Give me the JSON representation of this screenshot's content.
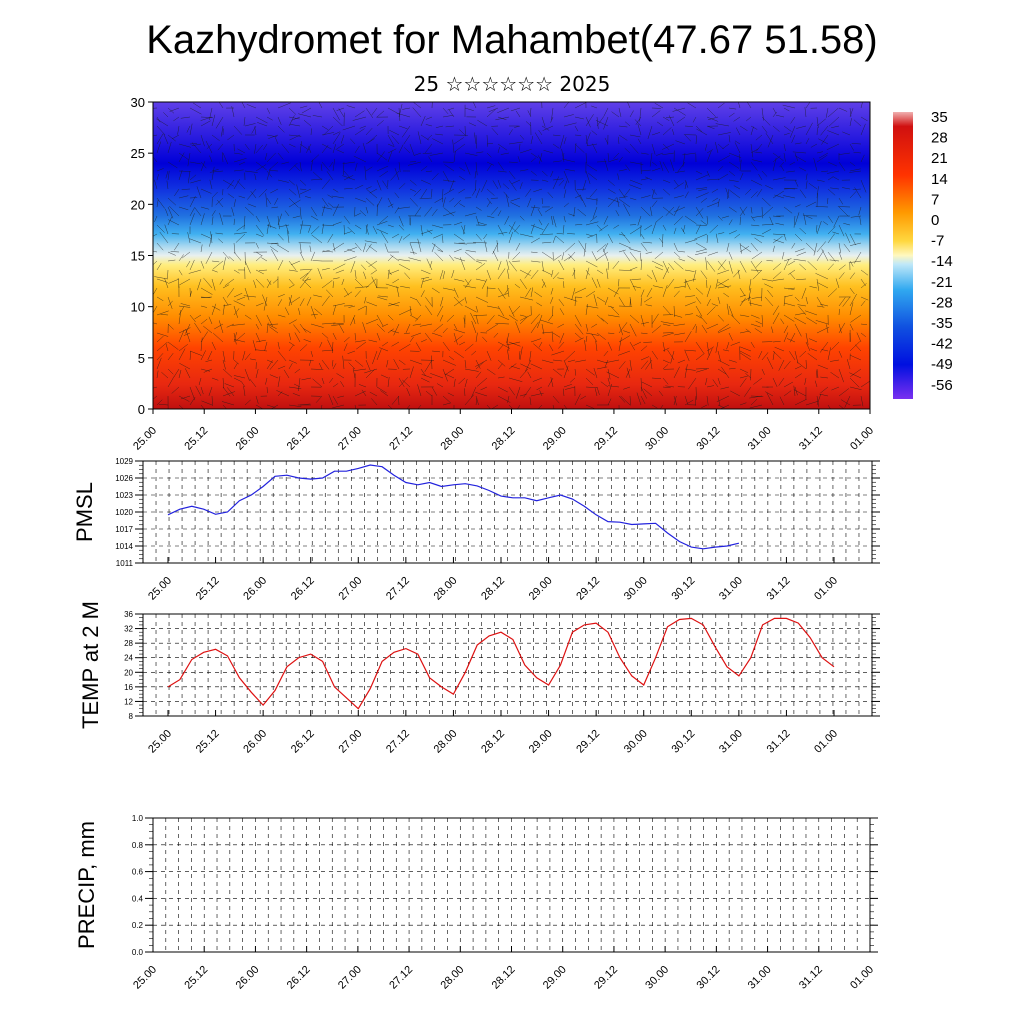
{
  "title": "Kazhydromet for Mahambet(47.67 51.58)",
  "subtitle": "25 ☆☆☆☆☆☆ 2025",
  "x_ticks": [
    "25.00",
    "25.12",
    "26.00",
    "26.12",
    "27.00",
    "27.12",
    "28.00",
    "28.12",
    "29.00",
    "29.12",
    "30.00",
    "30.12",
    "31.00",
    "31.12",
    "01.00"
  ],
  "colors": {
    "pmsl_line": "#2222dd",
    "temp_line": "#dd1111",
    "axis": "#000000"
  },
  "chart_data": [
    {
      "type": "heatmap",
      "name": "cross-section",
      "xlabel": "",
      "ylabel": "",
      "x_range": [
        0,
        7
      ],
      "ylim": [
        0,
        30
      ],
      "y_ticks": [
        "0",
        "5",
        "10",
        "15",
        "20",
        "25",
        "30"
      ],
      "colorbar": {
        "labels": [
          "35",
          "28",
          "21",
          "14",
          "7",
          "0",
          "-7",
          "-14",
          "-21",
          "-28",
          "-35",
          "-42",
          "-49",
          "-56"
        ],
        "range": [
          -63,
          38
        ]
      },
      "description_vectors": true
    },
    {
      "type": "line",
      "name": "pmsl",
      "ylabel": "PMSL",
      "ylim": [
        1011,
        1029
      ],
      "y_ticks": [
        "1011",
        "1014",
        "1017",
        "1020",
        "1023",
        "1026",
        "1029"
      ],
      "x": [
        0,
        0.125,
        0.25,
        0.375,
        0.5,
        0.625,
        0.75,
        0.875,
        1,
        1.125,
        1.25,
        1.375,
        1.5,
        1.625,
        1.75,
        1.875,
        2,
        2.125,
        2.25,
        2.375,
        2.5,
        2.625,
        2.75,
        2.875,
        3,
        3.125,
        3.25,
        3.375,
        3.5,
        3.625,
        3.75,
        3.875,
        4,
        4.125,
        4.25,
        4.375,
        4.5,
        4.625,
        4.75,
        4.875,
        5,
        5.125,
        5.25,
        5.375,
        5.5,
        5.625,
        5.75,
        5.875,
        6
      ],
      "values": [
        1019.5,
        1020.5,
        1021,
        1020.5,
        1019.6,
        1020,
        1022,
        1023,
        1024.5,
        1026.3,
        1026.5,
        1026,
        1025.8,
        1026,
        1027.2,
        1027.2,
        1027.7,
        1028.3,
        1028,
        1026.5,
        1025.2,
        1024.8,
        1025.2,
        1024.5,
        1024.8,
        1025,
        1024.6,
        1023.8,
        1022.8,
        1022.5,
        1022.5,
        1022,
        1022.5,
        1023,
        1022.3,
        1021,
        1019.5,
        1018.3,
        1018.2,
        1017.8,
        1017.9,
        1018,
        1016.3,
        1014.8,
        1013.8,
        1013.5,
        1013.8,
        1014,
        1014.5
      ]
    },
    {
      "type": "line",
      "name": "temp",
      "ylabel": "TEMP at 2 M",
      "ylim": [
        8,
        36
      ],
      "y_ticks": [
        "8",
        "12",
        "16",
        "20",
        "24",
        "28",
        "32",
        "36"
      ],
      "x": [
        0,
        0.125,
        0.25,
        0.375,
        0.5,
        0.625,
        0.75,
        0.875,
        1,
        1.125,
        1.25,
        1.375,
        1.5,
        1.625,
        1.75,
        1.875,
        2,
        2.125,
        2.25,
        2.375,
        2.5,
        2.625,
        2.75,
        2.875,
        3,
        3.125,
        3.25,
        3.375,
        3.5,
        3.625,
        3.75,
        3.875,
        4,
        4.125,
        4.25,
        4.375,
        4.5,
        4.625,
        4.75,
        4.875,
        5,
        5.125,
        5.25,
        5.375,
        5.5,
        5.625,
        5.75,
        5.875,
        6,
        6.125,
        6.25,
        6.375,
        6.5,
        6.625,
        6.75,
        6.875,
        7
      ],
      "values": [
        16,
        18,
        23.5,
        25.5,
        26.3,
        24.5,
        18.5,
        14.5,
        11,
        15,
        21.5,
        24,
        25,
        23,
        16,
        13,
        10,
        15.5,
        23,
        25.5,
        26.5,
        25,
        18.5,
        16,
        14,
        20,
        27.5,
        30,
        31,
        29,
        22,
        18.5,
        16.5,
        22,
        31,
        33,
        33.5,
        31,
        24,
        19,
        16.5,
        24,
        32.5,
        34.5,
        34.8,
        33,
        27,
        21.5,
        19,
        24,
        33,
        34.8,
        34.8,
        33.5,
        29.5,
        24,
        21.5
      ]
    },
    {
      "type": "bar",
      "name": "precip",
      "ylabel": "PRECIP, mm",
      "ylim": [
        0,
        1
      ],
      "y_ticks": [
        "0.0",
        "0.2",
        "0.4",
        "0.6",
        "0.8",
        "1.0"
      ],
      "values": []
    }
  ]
}
